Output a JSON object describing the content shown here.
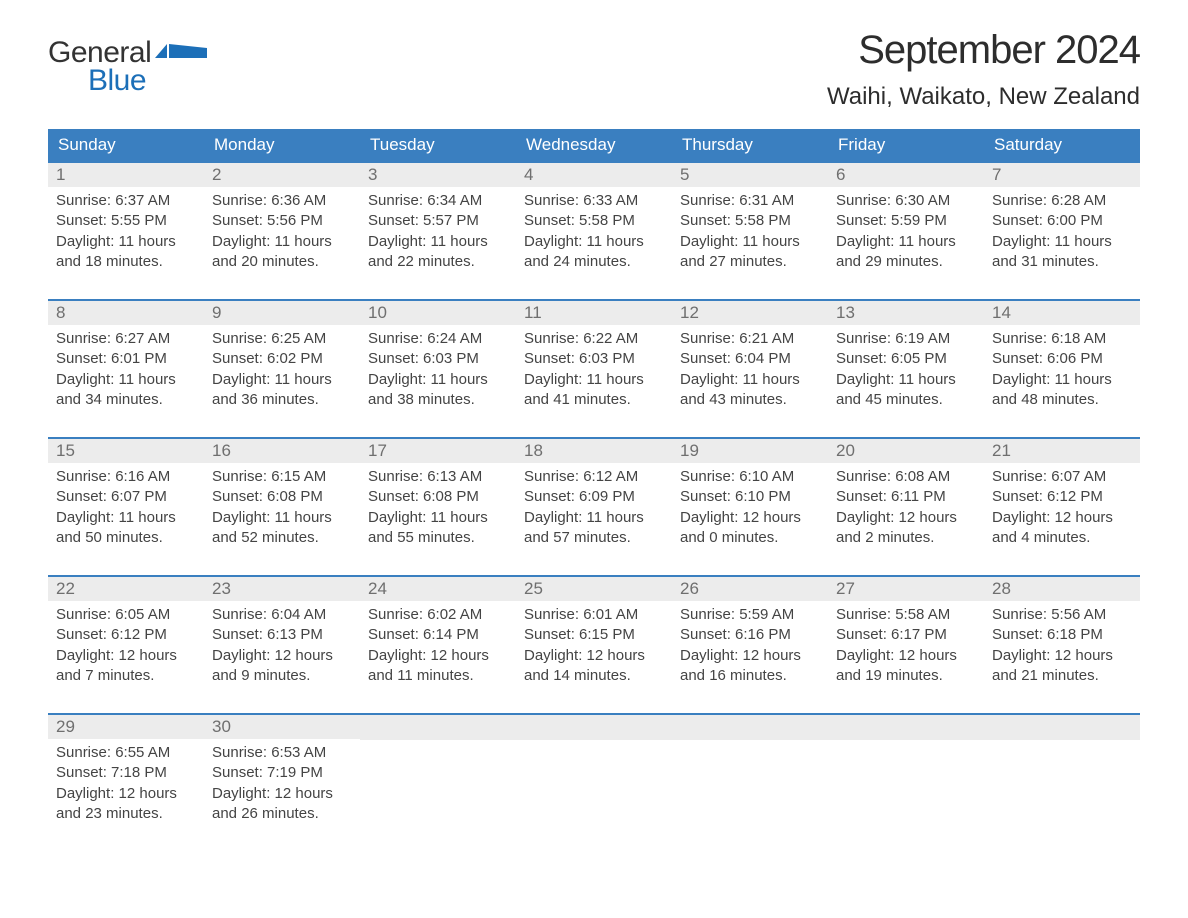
{
  "logo": {
    "text_general": "General",
    "text_blue": "Blue",
    "flag_color": "#1c6fb8"
  },
  "header": {
    "title": "September 2024",
    "location": "Waihi, Waikato, New Zealand"
  },
  "colors": {
    "header_bg": "#3a7fc0",
    "header_text": "#ffffff",
    "daynum_bg": "#ececec",
    "daynum_text": "#6f6f6f",
    "body_text": "#444444",
    "accent": "#1c6fb8"
  },
  "weekdays": [
    "Sunday",
    "Monday",
    "Tuesday",
    "Wednesday",
    "Thursday",
    "Friday",
    "Saturday"
  ],
  "weeks": [
    [
      {
        "num": "1",
        "sunrise": "Sunrise: 6:37 AM",
        "sunset": "Sunset: 5:55 PM",
        "daylight1": "Daylight: 11 hours",
        "daylight2": "and 18 minutes."
      },
      {
        "num": "2",
        "sunrise": "Sunrise: 6:36 AM",
        "sunset": "Sunset: 5:56 PM",
        "daylight1": "Daylight: 11 hours",
        "daylight2": "and 20 minutes."
      },
      {
        "num": "3",
        "sunrise": "Sunrise: 6:34 AM",
        "sunset": "Sunset: 5:57 PM",
        "daylight1": "Daylight: 11 hours",
        "daylight2": "and 22 minutes."
      },
      {
        "num": "4",
        "sunrise": "Sunrise: 6:33 AM",
        "sunset": "Sunset: 5:58 PM",
        "daylight1": "Daylight: 11 hours",
        "daylight2": "and 24 minutes."
      },
      {
        "num": "5",
        "sunrise": "Sunrise: 6:31 AM",
        "sunset": "Sunset: 5:58 PM",
        "daylight1": "Daylight: 11 hours",
        "daylight2": "and 27 minutes."
      },
      {
        "num": "6",
        "sunrise": "Sunrise: 6:30 AM",
        "sunset": "Sunset: 5:59 PM",
        "daylight1": "Daylight: 11 hours",
        "daylight2": "and 29 minutes."
      },
      {
        "num": "7",
        "sunrise": "Sunrise: 6:28 AM",
        "sunset": "Sunset: 6:00 PM",
        "daylight1": "Daylight: 11 hours",
        "daylight2": "and 31 minutes."
      }
    ],
    [
      {
        "num": "8",
        "sunrise": "Sunrise: 6:27 AM",
        "sunset": "Sunset: 6:01 PM",
        "daylight1": "Daylight: 11 hours",
        "daylight2": "and 34 minutes."
      },
      {
        "num": "9",
        "sunrise": "Sunrise: 6:25 AM",
        "sunset": "Sunset: 6:02 PM",
        "daylight1": "Daylight: 11 hours",
        "daylight2": "and 36 minutes."
      },
      {
        "num": "10",
        "sunrise": "Sunrise: 6:24 AM",
        "sunset": "Sunset: 6:03 PM",
        "daylight1": "Daylight: 11 hours",
        "daylight2": "and 38 minutes."
      },
      {
        "num": "11",
        "sunrise": "Sunrise: 6:22 AM",
        "sunset": "Sunset: 6:03 PM",
        "daylight1": "Daylight: 11 hours",
        "daylight2": "and 41 minutes."
      },
      {
        "num": "12",
        "sunrise": "Sunrise: 6:21 AM",
        "sunset": "Sunset: 6:04 PM",
        "daylight1": "Daylight: 11 hours",
        "daylight2": "and 43 minutes."
      },
      {
        "num": "13",
        "sunrise": "Sunrise: 6:19 AM",
        "sunset": "Sunset: 6:05 PM",
        "daylight1": "Daylight: 11 hours",
        "daylight2": "and 45 minutes."
      },
      {
        "num": "14",
        "sunrise": "Sunrise: 6:18 AM",
        "sunset": "Sunset: 6:06 PM",
        "daylight1": "Daylight: 11 hours",
        "daylight2": "and 48 minutes."
      }
    ],
    [
      {
        "num": "15",
        "sunrise": "Sunrise: 6:16 AM",
        "sunset": "Sunset: 6:07 PM",
        "daylight1": "Daylight: 11 hours",
        "daylight2": "and 50 minutes."
      },
      {
        "num": "16",
        "sunrise": "Sunrise: 6:15 AM",
        "sunset": "Sunset: 6:08 PM",
        "daylight1": "Daylight: 11 hours",
        "daylight2": "and 52 minutes."
      },
      {
        "num": "17",
        "sunrise": "Sunrise: 6:13 AM",
        "sunset": "Sunset: 6:08 PM",
        "daylight1": "Daylight: 11 hours",
        "daylight2": "and 55 minutes."
      },
      {
        "num": "18",
        "sunrise": "Sunrise: 6:12 AM",
        "sunset": "Sunset: 6:09 PM",
        "daylight1": "Daylight: 11 hours",
        "daylight2": "and 57 minutes."
      },
      {
        "num": "19",
        "sunrise": "Sunrise: 6:10 AM",
        "sunset": "Sunset: 6:10 PM",
        "daylight1": "Daylight: 12 hours",
        "daylight2": "and 0 minutes."
      },
      {
        "num": "20",
        "sunrise": "Sunrise: 6:08 AM",
        "sunset": "Sunset: 6:11 PM",
        "daylight1": "Daylight: 12 hours",
        "daylight2": "and 2 minutes."
      },
      {
        "num": "21",
        "sunrise": "Sunrise: 6:07 AM",
        "sunset": "Sunset: 6:12 PM",
        "daylight1": "Daylight: 12 hours",
        "daylight2": "and 4 minutes."
      }
    ],
    [
      {
        "num": "22",
        "sunrise": "Sunrise: 6:05 AM",
        "sunset": "Sunset: 6:12 PM",
        "daylight1": "Daylight: 12 hours",
        "daylight2": "and 7 minutes."
      },
      {
        "num": "23",
        "sunrise": "Sunrise: 6:04 AM",
        "sunset": "Sunset: 6:13 PM",
        "daylight1": "Daylight: 12 hours",
        "daylight2": "and 9 minutes."
      },
      {
        "num": "24",
        "sunrise": "Sunrise: 6:02 AM",
        "sunset": "Sunset: 6:14 PM",
        "daylight1": "Daylight: 12 hours",
        "daylight2": "and 11 minutes."
      },
      {
        "num": "25",
        "sunrise": "Sunrise: 6:01 AM",
        "sunset": "Sunset: 6:15 PM",
        "daylight1": "Daylight: 12 hours",
        "daylight2": "and 14 minutes."
      },
      {
        "num": "26",
        "sunrise": "Sunrise: 5:59 AM",
        "sunset": "Sunset: 6:16 PM",
        "daylight1": "Daylight: 12 hours",
        "daylight2": "and 16 minutes."
      },
      {
        "num": "27",
        "sunrise": "Sunrise: 5:58 AM",
        "sunset": "Sunset: 6:17 PM",
        "daylight1": "Daylight: 12 hours",
        "daylight2": "and 19 minutes."
      },
      {
        "num": "28",
        "sunrise": "Sunrise: 5:56 AM",
        "sunset": "Sunset: 6:18 PM",
        "daylight1": "Daylight: 12 hours",
        "daylight2": "and 21 minutes."
      }
    ],
    [
      {
        "num": "29",
        "sunrise": "Sunrise: 6:55 AM",
        "sunset": "Sunset: 7:18 PM",
        "daylight1": "Daylight: 12 hours",
        "daylight2": "and 23 minutes."
      },
      {
        "num": "30",
        "sunrise": "Sunrise: 6:53 AM",
        "sunset": "Sunset: 7:19 PM",
        "daylight1": "Daylight: 12 hours",
        "daylight2": "and 26 minutes."
      },
      {
        "empty": true
      },
      {
        "empty": true
      },
      {
        "empty": true
      },
      {
        "empty": true
      },
      {
        "empty": true
      }
    ]
  ]
}
